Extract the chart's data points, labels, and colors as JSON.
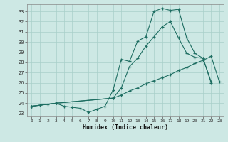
{
  "xlabel": "Humidex (Indice chaleur)",
  "background_color": "#cde8e4",
  "grid_color": "#a8cfc9",
  "line_color": "#1e6e62",
  "xlim": [
    -0.5,
    23.5
  ],
  "ylim": [
    22.7,
    33.7
  ],
  "xticks": [
    0,
    1,
    2,
    3,
    4,
    5,
    6,
    7,
    8,
    9,
    10,
    11,
    12,
    13,
    14,
    15,
    16,
    17,
    18,
    19,
    20,
    21,
    22,
    23
  ],
  "yticks": [
    23,
    24,
    25,
    26,
    27,
    28,
    29,
    30,
    31,
    32,
    33
  ],
  "line1_x": [
    0,
    1,
    2,
    3,
    4,
    5,
    6,
    7,
    8,
    9,
    10,
    11,
    12,
    13,
    14,
    15,
    16,
    17,
    18,
    19,
    20,
    21,
    22
  ],
  "line1_y": [
    23.7,
    23.8,
    23.9,
    24.0,
    23.7,
    23.6,
    23.5,
    23.1,
    23.4,
    23.7,
    25.3,
    28.3,
    28.1,
    30.1,
    30.5,
    33.0,
    33.3,
    33.1,
    33.2,
    30.4,
    28.9,
    28.4,
    26.0
  ],
  "line2_x": [
    0,
    3,
    10,
    11,
    12,
    13,
    14,
    15,
    16,
    17,
    18,
    19,
    20,
    21,
    22,
    23
  ],
  "line2_y": [
    23.7,
    24.0,
    24.5,
    25.5,
    27.6,
    28.4,
    29.6,
    30.5,
    31.5,
    32.0,
    30.4,
    28.9,
    28.5,
    28.4,
    26.1,
    null
  ],
  "line3_x": [
    0,
    3,
    10,
    11,
    12,
    13,
    14,
    15,
    16,
    17,
    18,
    19,
    20,
    21,
    22,
    23
  ],
  "line3_y": [
    23.7,
    24.0,
    24.5,
    24.8,
    25.2,
    25.5,
    25.9,
    26.2,
    26.5,
    26.8,
    27.2,
    27.5,
    27.9,
    28.2,
    28.6,
    26.1
  ]
}
